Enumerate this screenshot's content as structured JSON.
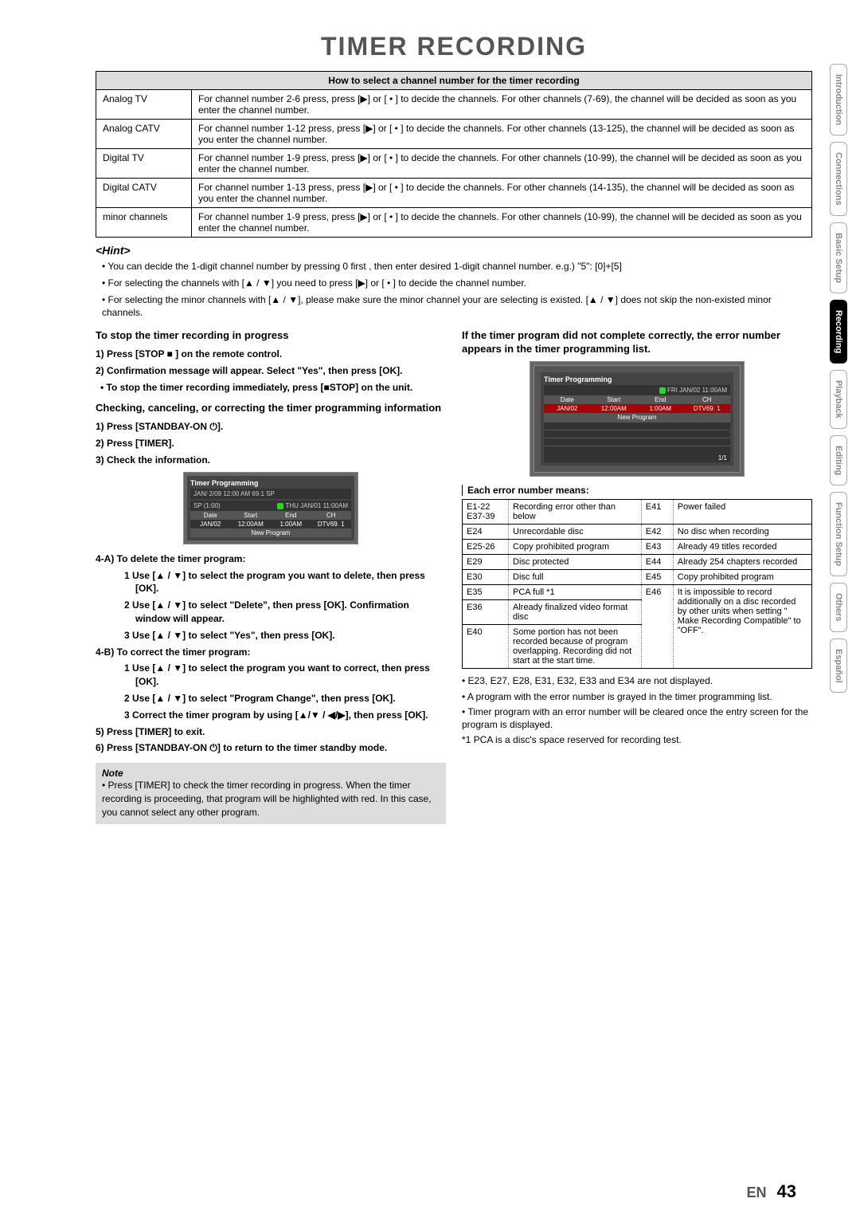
{
  "title": "TIMER RECORDING",
  "channel_table": {
    "header": "How to select a channel number for the timer recording",
    "rows": [
      {
        "label": "Analog TV",
        "text": "For channel number 2-6 press, press [▶] or [ • ] to decide the channels. For other channels (7-69), the channel will be decided as soon as you enter the channel number."
      },
      {
        "label": "Analog CATV",
        "text": "For channel number 1-12 press, press [▶] or [ • ] to decide the channels. For other channels (13-125), the channel will be decided as soon as you enter the channel number."
      },
      {
        "label": "Digital TV",
        "text": "For channel number 1-9 press, press [▶] or [ • ] to decide the channels. For other channels (10-99), the channel will be decided as soon as you enter the channel number."
      },
      {
        "label": "Digital CATV",
        "text": "For channel number 1-13 press, press [▶] or [ • ] to decide the channels. For other channels (14-135), the channel will be decided as soon as you enter the channel number."
      },
      {
        "label": "minor channels",
        "text": "For channel number 1-9 press, press [▶] or [ • ] to decide the channels. For other channels (10-99), the channel will be decided as soon as you enter the channel number."
      }
    ]
  },
  "hint": {
    "title": "<Hint>",
    "items": [
      "You can decide the 1-digit channel number by pressing 0 first , then enter desired 1-digit channel number. e.g.) \"5\": [0]+[5]",
      "For selecting the channels with [▲ / ▼] you need to press [▶] or [ • ] to decide the channel number.",
      "For selecting the minor channels with [▲ / ▼], please make sure the minor channel your are selecting is existed. [▲ / ▼] does not skip the non-existed minor channels."
    ]
  },
  "left": {
    "stop_head": "To stop the timer recording in progress",
    "stop_1": "1) Press [STOP ■ ] on the remote control.",
    "stop_2": "2) Confirmation message will appear. Select \"Yes\", then press [OK].",
    "stop_3": "• To stop the timer recording immediately, press [■STOP] on the unit.",
    "check_head": "Checking, canceling, or correcting the timer programming information",
    "check_1": "1) Press [STANDBAY-ON ⏻].",
    "check_2": "2) Press [TIMER].",
    "check_3": "3) Check the information.",
    "tp_title": "Timer Programming",
    "tp_sub": "JAN/ 2/09 12:00 AM 69.1 SP",
    "tp_sp": "SP (1:00)",
    "tp_time": "THU JAN/01 11:00AM",
    "tp_cols": [
      "Date",
      "Start",
      "End",
      "CH"
    ],
    "tp_row": [
      "JAN/02",
      "12:00AM",
      "1:00AM",
      "DTV69. 1"
    ],
    "tp_new": "New Program",
    "del_head": "4-A) To delete the timer program:",
    "del_1": "1 Use [▲ / ▼] to select the program you want to delete, then press [OK].",
    "del_2": "2 Use [▲ / ▼] to select \"Delete\", then press [OK]. Confirmation window will appear.",
    "del_3": "3 Use [▲ / ▼] to select \"Yes\", then press [OK].",
    "cor_head": "4-B) To correct the timer program:",
    "cor_1": "1 Use [▲ / ▼] to select the program you want to correct, then press [OK].",
    "cor_2": "2 Use [▲ / ▼] to select \"Program Change\", then press [OK].",
    "cor_3": "3 Correct the timer program by using [▲/▼ / ◀/▶], then press [OK].",
    "step5": "5) Press [TIMER] to exit.",
    "step6": "6) Press [STANDBAY-ON ⏻] to return to the timer standby mode.",
    "note_title": "Note",
    "note_text": "Press [TIMER] to check the timer recording in progress. When the timer recording is proceeding, that program will be highlighted with red. In this case, you cannot select any other program."
  },
  "right": {
    "err_head": "If the timer program did not complete correctly, the error number appears in the timer programming list.",
    "tp_title": "Timer Programming",
    "tp_time": "FRI JAN/02 11:00AM",
    "tp_cols": [
      "Date",
      "Start",
      "End",
      "CH"
    ],
    "tp_row": [
      "JAN/02",
      "12:00AM",
      "1:00AM",
      "DTV69. 1"
    ],
    "tp_new": "New Program",
    "tp_page": "1/1",
    "err_label": "Each error number means:",
    "errors": [
      [
        "E1-22 E37-39",
        "Recording error other than below",
        "E41",
        "Power failed"
      ],
      [
        "E24",
        "Unrecordable disc",
        "E42",
        "No disc when recording"
      ],
      [
        "E25-26",
        "Copy prohibited program",
        "E43",
        "Already 49 titles recorded"
      ],
      [
        "E29",
        "Disc protected",
        "E44",
        "Already 254 chapters recorded"
      ],
      [
        "E30",
        "Disc full",
        "E45",
        "Copy prohibited program"
      ],
      [
        "E35",
        "PCA full *1",
        "E46",
        "It is impossible to record additionally on a disc recorded by other units when setting \" Make Recording Compatible\" to \"OFF\"."
      ],
      [
        "E36",
        "Already finalized video format disc",
        "",
        ""
      ],
      [
        "E40",
        "Some portion has not been recorded because of program overlapping. Recording did not start at the start time.",
        "",
        ""
      ]
    ],
    "notes": [
      "E23, E27, E28, E31, E32, E33 and E34 are not displayed.",
      "A program with the error number is grayed in the timer programming list.",
      "Timer program with an error number will be cleared once the entry screen for the program is displayed."
    ],
    "footnote": "*1 PCA is a disc's space reserved for recording test."
  },
  "tabs": [
    "Introduction",
    "Connections",
    "Basic Setup",
    "Recording",
    "Playback",
    "Editing",
    "Function Setup",
    "Others",
    "Español"
  ],
  "active_tab": 3,
  "page_en": "EN",
  "page_num": "43"
}
